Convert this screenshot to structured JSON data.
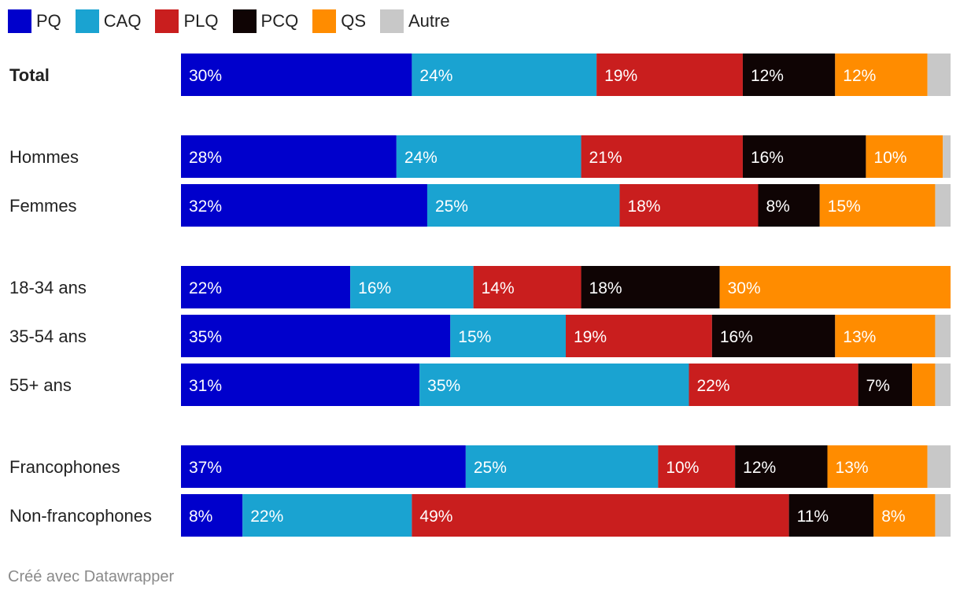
{
  "legend": [
    {
      "name": "PQ",
      "color": "#0000cc"
    },
    {
      "name": "CAQ",
      "color": "#1aa3d1"
    },
    {
      "name": "PLQ",
      "color": "#c91e1e"
    },
    {
      "name": "PCQ",
      "color": "#0f0404"
    },
    {
      "name": "QS",
      "color": "#ff8c00"
    },
    {
      "name": "Autre",
      "color": "#c8c8c8"
    }
  ],
  "footer": "Créé avec Datawrapper",
  "chart_data": {
    "type": "bar",
    "orientation": "horizontal",
    "stacked": true,
    "xlim": [
      0,
      100
    ],
    "series": [
      "PQ",
      "CAQ",
      "PLQ",
      "PCQ",
      "QS",
      "Autre"
    ],
    "groups": [
      {
        "rows": [
          {
            "label": "Total",
            "bold": true,
            "values": [
              30,
              24,
              19,
              12,
              12,
              3
            ]
          }
        ]
      },
      {
        "rows": [
          {
            "label": "Hommes",
            "values": [
              28,
              24,
              21,
              16,
              10,
              1
            ]
          },
          {
            "label": "Femmes",
            "values": [
              32,
              25,
              18,
              8,
              15,
              2
            ]
          }
        ]
      },
      {
        "rows": [
          {
            "label": "18-34 ans",
            "values": [
              22,
              16,
              14,
              18,
              30,
              0
            ]
          },
          {
            "label": "35-54 ans",
            "values": [
              35,
              15,
              19,
              16,
              13,
              2
            ]
          },
          {
            "label": "55+ ans",
            "values": [
              31,
              35,
              22,
              7,
              3,
              2
            ]
          }
        ]
      },
      {
        "rows": [
          {
            "label": "Francophones",
            "values": [
              37,
              25,
              10,
              12,
              13,
              3
            ]
          },
          {
            "label": "Non-francophones",
            "values": [
              8,
              22,
              49,
              11,
              8,
              2
            ]
          }
        ]
      }
    ]
  }
}
